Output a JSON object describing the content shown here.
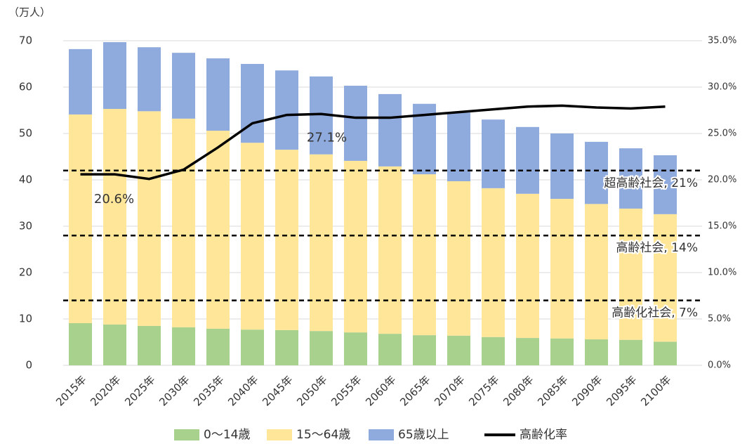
{
  "chart_data": {
    "type": "stacked_bar_line",
    "y_axis_label": "（万人）",
    "categories": [
      "2015年",
      "2020年",
      "2025年",
      "2030年",
      "2035年",
      "2040年",
      "2045年",
      "2050年",
      "2055年",
      "2060年",
      "2065年",
      "2070年",
      "2075年",
      "2080年",
      "2085年",
      "2090年",
      "2095年",
      "2100年"
    ],
    "series": [
      {
        "name": "0～14歳",
        "color": "#a9d18e",
        "values": [
          9.1,
          8.8,
          8.5,
          8.2,
          7.9,
          7.7,
          7.6,
          7.4,
          7.1,
          6.8,
          6.5,
          6.4,
          6.1,
          5.9,
          5.8,
          5.6,
          5.5,
          5.1
        ]
      },
      {
        "name": "15～64歳",
        "color": "#ffe699",
        "values": [
          45.0,
          46.5,
          46.3,
          45.0,
          42.7,
          40.3,
          38.9,
          38.1,
          37.0,
          36.1,
          34.7,
          33.3,
          32.1,
          31.1,
          30.1,
          29.2,
          28.3,
          27.5
        ]
      },
      {
        "name": "65歳以上",
        "color": "#8faadc",
        "values": [
          14.1,
          14.4,
          13.8,
          14.2,
          15.6,
          17.0,
          17.1,
          16.8,
          16.2,
          15.6,
          15.2,
          14.8,
          14.8,
          14.4,
          14.1,
          13.4,
          13.0,
          12.7
        ]
      },
      {
        "name": "高齢化率",
        "color": "#000000",
        "axis": "y2",
        "line": true,
        "values": [
          20.6,
          20.6,
          20.1,
          21.1,
          23.5,
          26.1,
          27.0,
          27.1,
          26.7,
          26.7,
          27.0,
          27.3,
          27.6,
          27.9,
          28.0,
          27.8,
          27.7,
          27.9
        ],
        "value_labels": [
          "20.6%",
          null,
          null,
          null,
          null,
          null,
          null,
          "27.1%",
          null,
          null,
          null,
          null,
          null,
          null,
          null,
          null,
          null,
          null
        ]
      }
    ],
    "ylim": [
      0,
      70
    ],
    "yticks": [
      0,
      10,
      20,
      30,
      40,
      50,
      60,
      70
    ],
    "y2lim": [
      0,
      35
    ],
    "y2ticks": [
      {
        "value": 0,
        "label": "0.0%"
      },
      {
        "value": 5,
        "label": "5.0%"
      },
      {
        "value": 10,
        "label": "10.0%"
      },
      {
        "value": 15,
        "label": "15.0%"
      },
      {
        "value": 20,
        "label": "20.0%"
      },
      {
        "value": 25,
        "label": "25.0%"
      },
      {
        "value": 30,
        "label": "30.0%"
      },
      {
        "value": 35,
        "label": "35.0%"
      }
    ],
    "reference_lines": [
      {
        "value": 21,
        "label": "超高齢社会, 21%"
      },
      {
        "value": 14,
        "label": "高齢社会, 14%"
      },
      {
        "value": 7,
        "label": "高齢化社会, 7%"
      }
    ],
    "grid": true,
    "legend": "bottom"
  }
}
